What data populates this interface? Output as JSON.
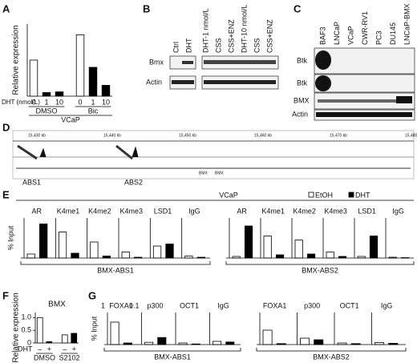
{
  "figure": {
    "panels": [
      "A",
      "B",
      "C",
      "D",
      "E",
      "F",
      "G"
    ]
  },
  "blot_b": {
    "lanes_left": [
      "Ctrl",
      "DHT"
    ],
    "lanes_right": [
      "DHT-1 nmol/L",
      "CSS",
      "CSS+ENZ",
      "DHT-10 nmol/L",
      "CSS",
      "CSS+ENZ"
    ],
    "rows": [
      "Bmx",
      "Actin"
    ]
  },
  "blot_c": {
    "lanes": [
      "BAF3",
      "LNCaP",
      "VCaP",
      "CWR-RV1",
      "PC3",
      "DU145",
      "LNCaP-BMX"
    ],
    "rows": [
      "Btk",
      "Btk",
      "BMX",
      "Actin"
    ]
  },
  "track_d": {
    "coords": [
      "15,430 kb",
      "15,440 kb",
      "15,450 kb",
      "15,460 kb",
      "15,470 kb",
      "15,480 kb"
    ],
    "genes": [
      "BMX",
      "BMX"
    ],
    "sites": [
      "ABS1",
      "ABS2"
    ]
  },
  "chart_data": [
    {
      "type": "bar",
      "y_label": "Relative expression",
      "x_label": "DHT (nmol/L)",
      "cell_line": "VCaP",
      "categories": [
        "0",
        "1",
        "10",
        "0",
        "1",
        "10"
      ],
      "groups": [
        "DMSO",
        "Bic"
      ],
      "values": [
        1.0,
        0.1,
        0.12,
        1.7,
        0.8,
        0.3
      ],
      "colors": [
        "#ffffff",
        "#000000",
        "#000000",
        "#ffffff",
        "#000000",
        "#000000"
      ],
      "ylim": [
        0,
        2
      ]
    },
    {
      "type": "grouped-bar",
      "y_label": "% Input",
      "cell_line": "VCaP",
      "site": "BMX-ABS1",
      "categories": [
        "AR",
        "K4me1",
        "K4me2",
        "K4me3",
        "LSD1",
        "IgG"
      ],
      "series": [
        {
          "name": "EtOH",
          "color": "#ffffff",
          "values": [
            0.1,
            0.65,
            0.4,
            0.15,
            0.3,
            0.05
          ]
        },
        {
          "name": "DHT",
          "color": "#000000",
          "values": [
            0.85,
            0.12,
            0.05,
            0.02,
            0.35,
            0.02
          ]
        }
      ],
      "ylim": [
        0,
        1
      ]
    },
    {
      "type": "grouped-bar",
      "site": "BMX-ABS2",
      "categories": [
        "AR",
        "K4me1",
        "K4me2",
        "K4me3",
        "LSD1",
        "IgG"
      ],
      "series": [
        {
          "color": "#ffffff",
          "values": [
            0.04,
            0.55,
            0.45,
            0.15,
            0.04,
            0.02
          ]
        },
        {
          "color": "#000000",
          "values": [
            0.8,
            0.08,
            0.1,
            0.04,
            0.55,
            0.01
          ]
        }
      ],
      "ylim": [
        0,
        1
      ]
    },
    {
      "type": "bar",
      "title": "BMX",
      "y_label": "Relative expression",
      "x_label": "DHT",
      "categories": [
        "–",
        "+",
        "–",
        "+"
      ],
      "groups": [
        "DMSO",
        "S2102"
      ],
      "values": [
        1.0,
        0.05,
        0.32,
        0.38
      ],
      "colors": [
        "#ffffff",
        "#000000",
        "#ffffff",
        "#000000"
      ],
      "ylim": [
        0,
        1.2
      ],
      "yticks": [
        0,
        0.5,
        {
          "value": 1,
          "label": "1.0"
        }
      ]
    },
    {
      "type": "grouped-bar",
      "y_label": "% Input",
      "site": "BMX-ABS1",
      "categories": [
        "FOXA1",
        "p300",
        "OCT1",
        "IgG"
      ],
      "top_labels": [
        "1",
        "0.1"
      ],
      "series": [
        {
          "color": "#ffffff",
          "values": [
            0.7,
            0.07,
            0.05,
            0.1
          ]
        },
        {
          "color": "#000000",
          "values": [
            0.05,
            0.22,
            0.02,
            0.08
          ]
        }
      ],
      "ylim": [
        0,
        1
      ]
    },
    {
      "type": "grouped-bar",
      "site": "BMX-ABS2",
      "categories": [
        "FOXA1",
        "p300",
        "OCT1",
        "IgG"
      ],
      "series": [
        {
          "color": "#ffffff",
          "values": [
            0.45,
            0.2,
            0.05,
            0.06
          ]
        },
        {
          "color": "#000000",
          "values": [
            0.03,
            0.15,
            0.03,
            0.04
          ]
        }
      ],
      "ylim": [
        0,
        1
      ]
    }
  ]
}
